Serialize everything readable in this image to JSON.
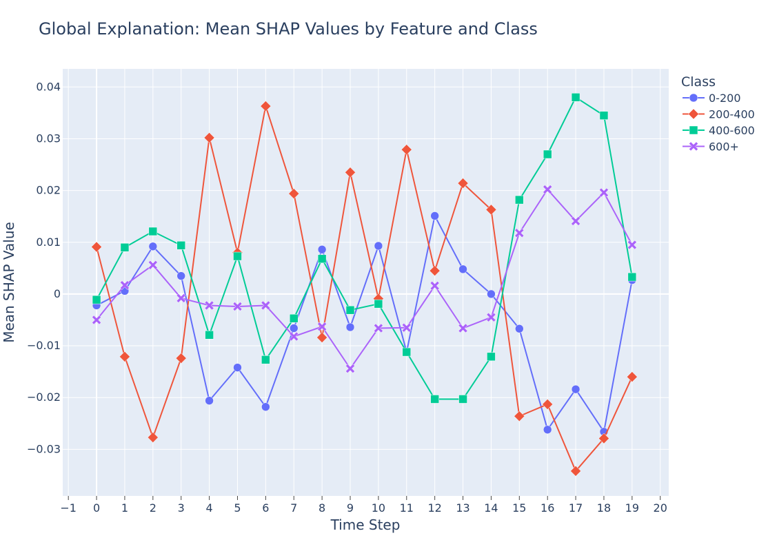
{
  "chart_data": {
    "type": "line",
    "title": "Global Explanation: Mean SHAP Values by Feature and Class",
    "xlabel": "Time Step",
    "ylabel": "Mean SHAP Value",
    "xlim": [
      -1.2,
      20.3
    ],
    "ylim": [
      -0.039,
      0.0435
    ],
    "x_ticks": [
      -1,
      0,
      1,
      2,
      3,
      4,
      5,
      6,
      7,
      8,
      9,
      10,
      11,
      12,
      13,
      14,
      15,
      16,
      17,
      18,
      19,
      20
    ],
    "x_tick_labels": [
      "−1",
      "0",
      "1",
      "2",
      "3",
      "4",
      "5",
      "6",
      "7",
      "8",
      "9",
      "10",
      "11",
      "12",
      "13",
      "14",
      "15",
      "16",
      "17",
      "18",
      "19",
      "20"
    ],
    "y_ticks": [
      -0.03,
      -0.02,
      -0.01,
      0,
      0.01,
      0.02,
      0.03,
      0.04
    ],
    "y_tick_labels": [
      "−0.03",
      "−0.02",
      "−0.01",
      "0",
      "0.01",
      "0.02",
      "0.03",
      "0.04"
    ],
    "grid": true,
    "legend": {
      "title": "Class",
      "position": "right-top"
    },
    "x": [
      0,
      1,
      2,
      3,
      4,
      5,
      6,
      7,
      8,
      9,
      10,
      11,
      12,
      13,
      14,
      15,
      16,
      17,
      18,
      19
    ],
    "series": [
      {
        "name": "0-200",
        "color": "#636efa",
        "marker": "circle",
        "values": [
          -0.0022,
          0.0006,
          0.0092,
          0.0035,
          -0.0206,
          -0.0142,
          -0.0218,
          -0.0066,
          0.0086,
          -0.0064,
          0.0093,
          -0.0112,
          0.0151,
          0.0048,
          0.0,
          -0.0067,
          -0.0262,
          -0.0184,
          -0.0266,
          0.0027
        ]
      },
      {
        "name": "200-400",
        "color": "#ef553b",
        "marker": "diamond",
        "values": [
          0.0091,
          -0.0121,
          -0.0277,
          -0.0124,
          0.0302,
          0.008,
          0.0363,
          0.0194,
          -0.0084,
          0.0235,
          -0.0009,
          0.0279,
          0.0045,
          0.0214,
          0.0163,
          -0.0236,
          -0.0213,
          -0.0342,
          -0.0279,
          -0.016
        ]
      },
      {
        "name": "400-600",
        "color": "#00cc96",
        "marker": "square",
        "values": [
          -0.0011,
          0.009,
          0.0121,
          0.0094,
          -0.0079,
          0.0073,
          -0.0127,
          -0.0047,
          0.0068,
          -0.0031,
          -0.0019,
          -0.0112,
          -0.0203,
          -0.0203,
          -0.0121,
          0.0182,
          0.027,
          0.038,
          0.0345,
          0.0033
        ]
      },
      {
        "name": "600+",
        "color": "#ab63fa",
        "marker": "x",
        "values": [
          -0.005,
          0.0017,
          0.0056,
          -0.0008,
          -0.0022,
          -0.0024,
          -0.0022,
          -0.0082,
          -0.0063,
          -0.0144,
          -0.0066,
          -0.0065,
          0.0016,
          -0.0066,
          -0.0045,
          0.0118,
          0.0202,
          0.0141,
          0.0196,
          0.0095
        ]
      }
    ]
  }
}
